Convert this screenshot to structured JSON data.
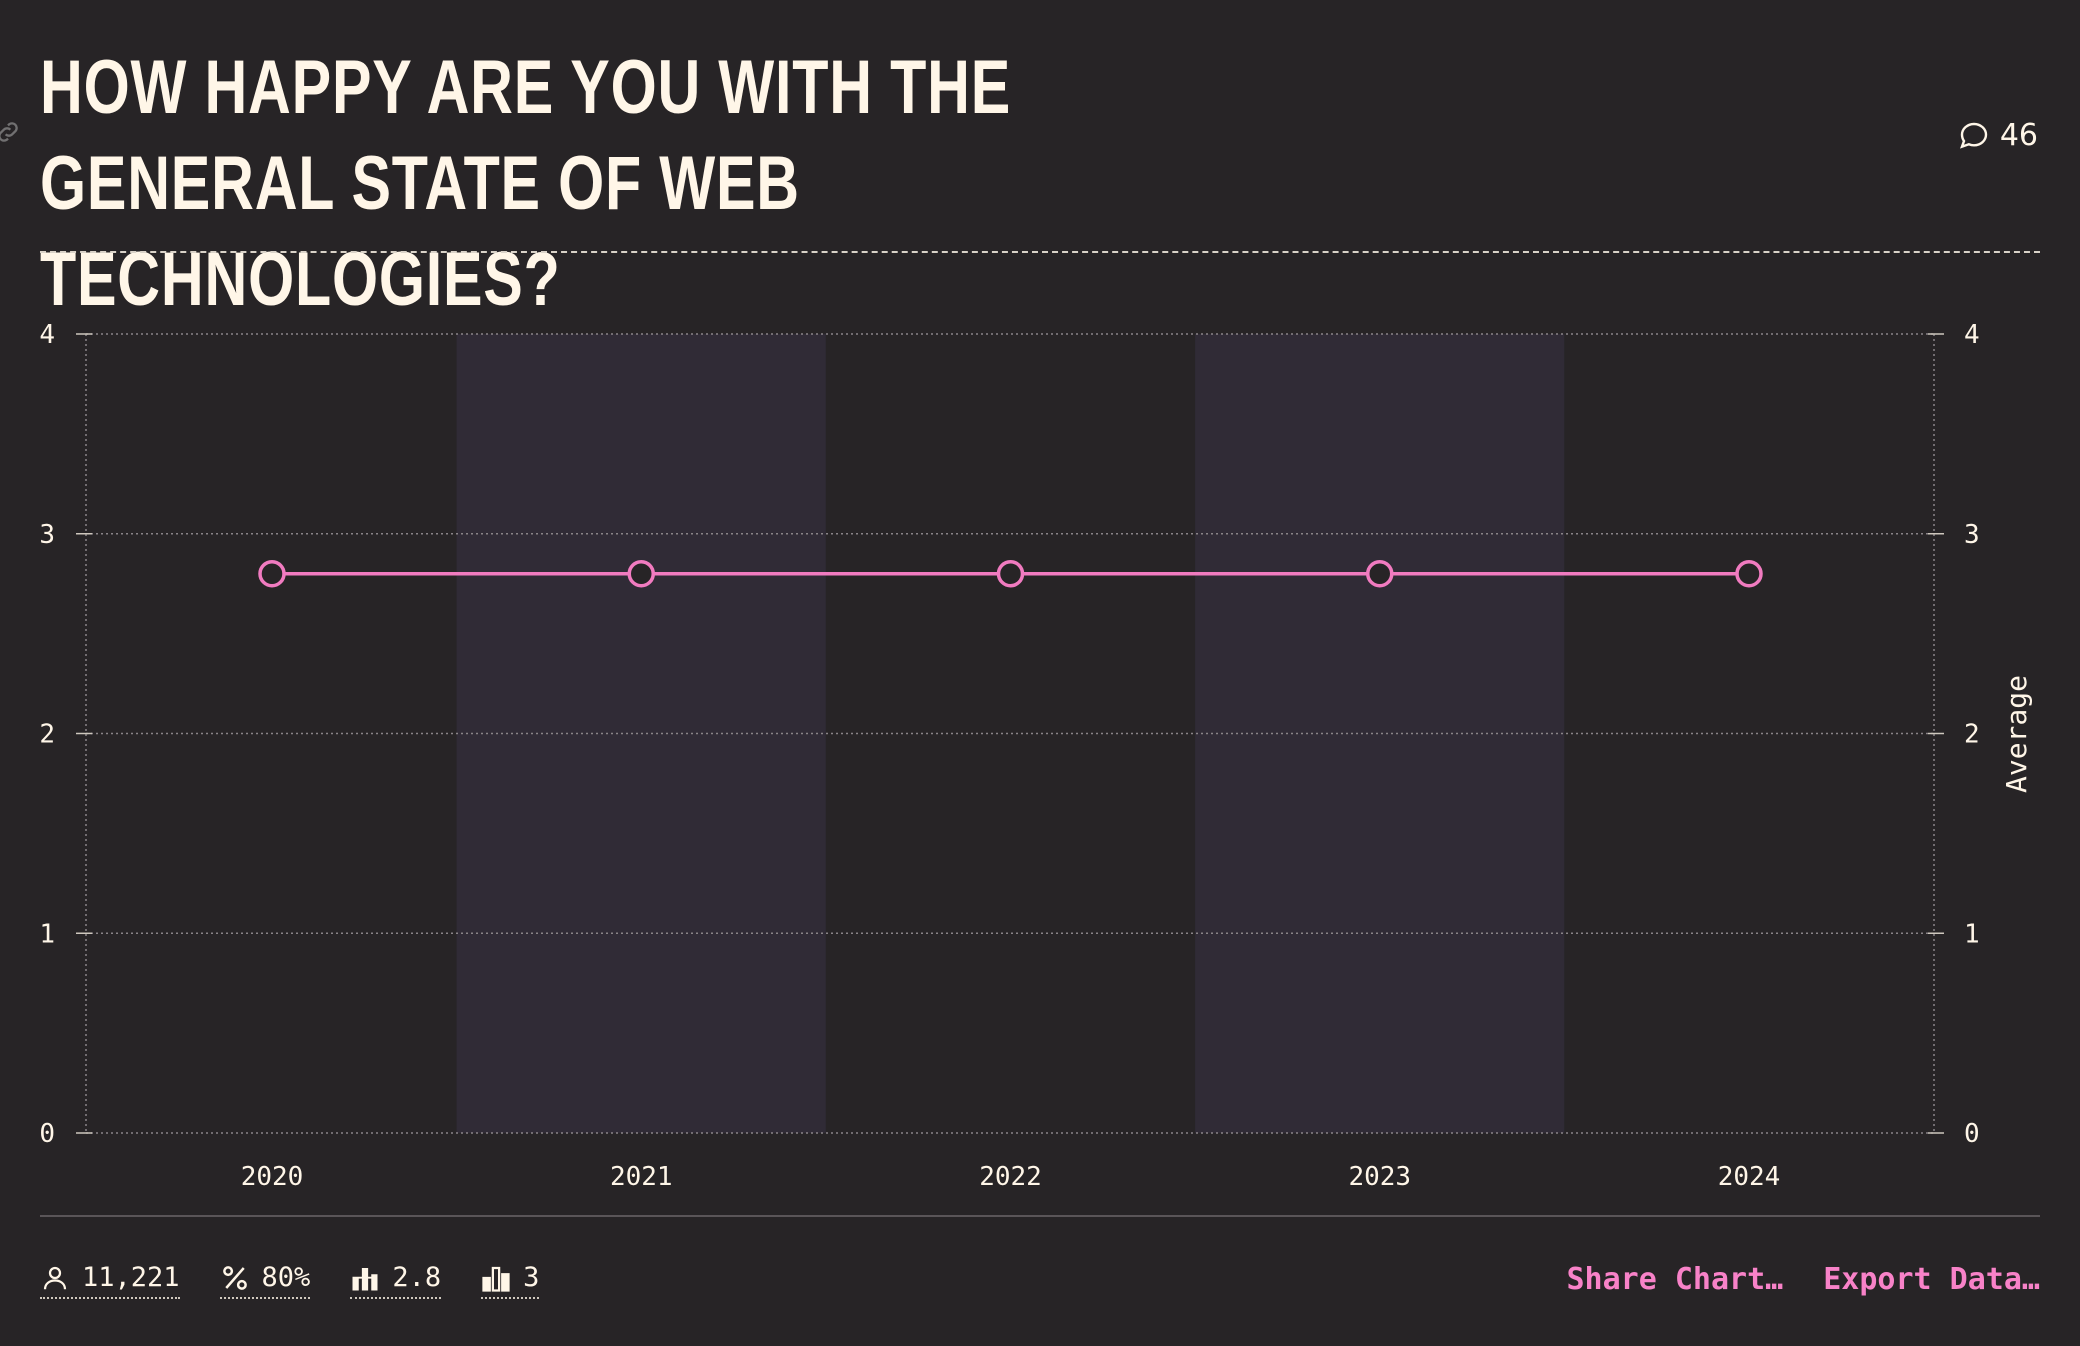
{
  "title": "How happy are you with the general state of web technologies?",
  "comments": {
    "count": "46",
    "icon": "comment-icon"
  },
  "link_icon": "link-icon",
  "chart_data": {
    "type": "line",
    "x": [
      "2020",
      "2021",
      "2022",
      "2023",
      "2024"
    ],
    "series": [
      {
        "values": [
          2.8,
          2.8,
          2.8,
          2.8,
          2.8
        ],
        "color": "#f17bc0"
      }
    ],
    "ylim": [
      0,
      4
    ],
    "yticks": [
      "0",
      "1",
      "2",
      "3",
      "4"
    ],
    "xlabel": "",
    "ylabel": "",
    "y2label": "Average",
    "grid": true,
    "band_colors": [
      "#272426",
      "#302b36"
    ]
  },
  "footer": {
    "stats": [
      {
        "icon": "respondents-icon",
        "value": "11,221"
      },
      {
        "icon": "percent-icon",
        "value": "80%"
      },
      {
        "icon": "average-icon",
        "value": "2.8"
      },
      {
        "icon": "median-icon",
        "value": "3"
      }
    ],
    "share_label": "Share Chart…",
    "export_label": "Export Data…"
  },
  "colors": {
    "background": "#272426",
    "text": "#fff6e8",
    "accent": "#f882c8",
    "band": "#302b36"
  }
}
